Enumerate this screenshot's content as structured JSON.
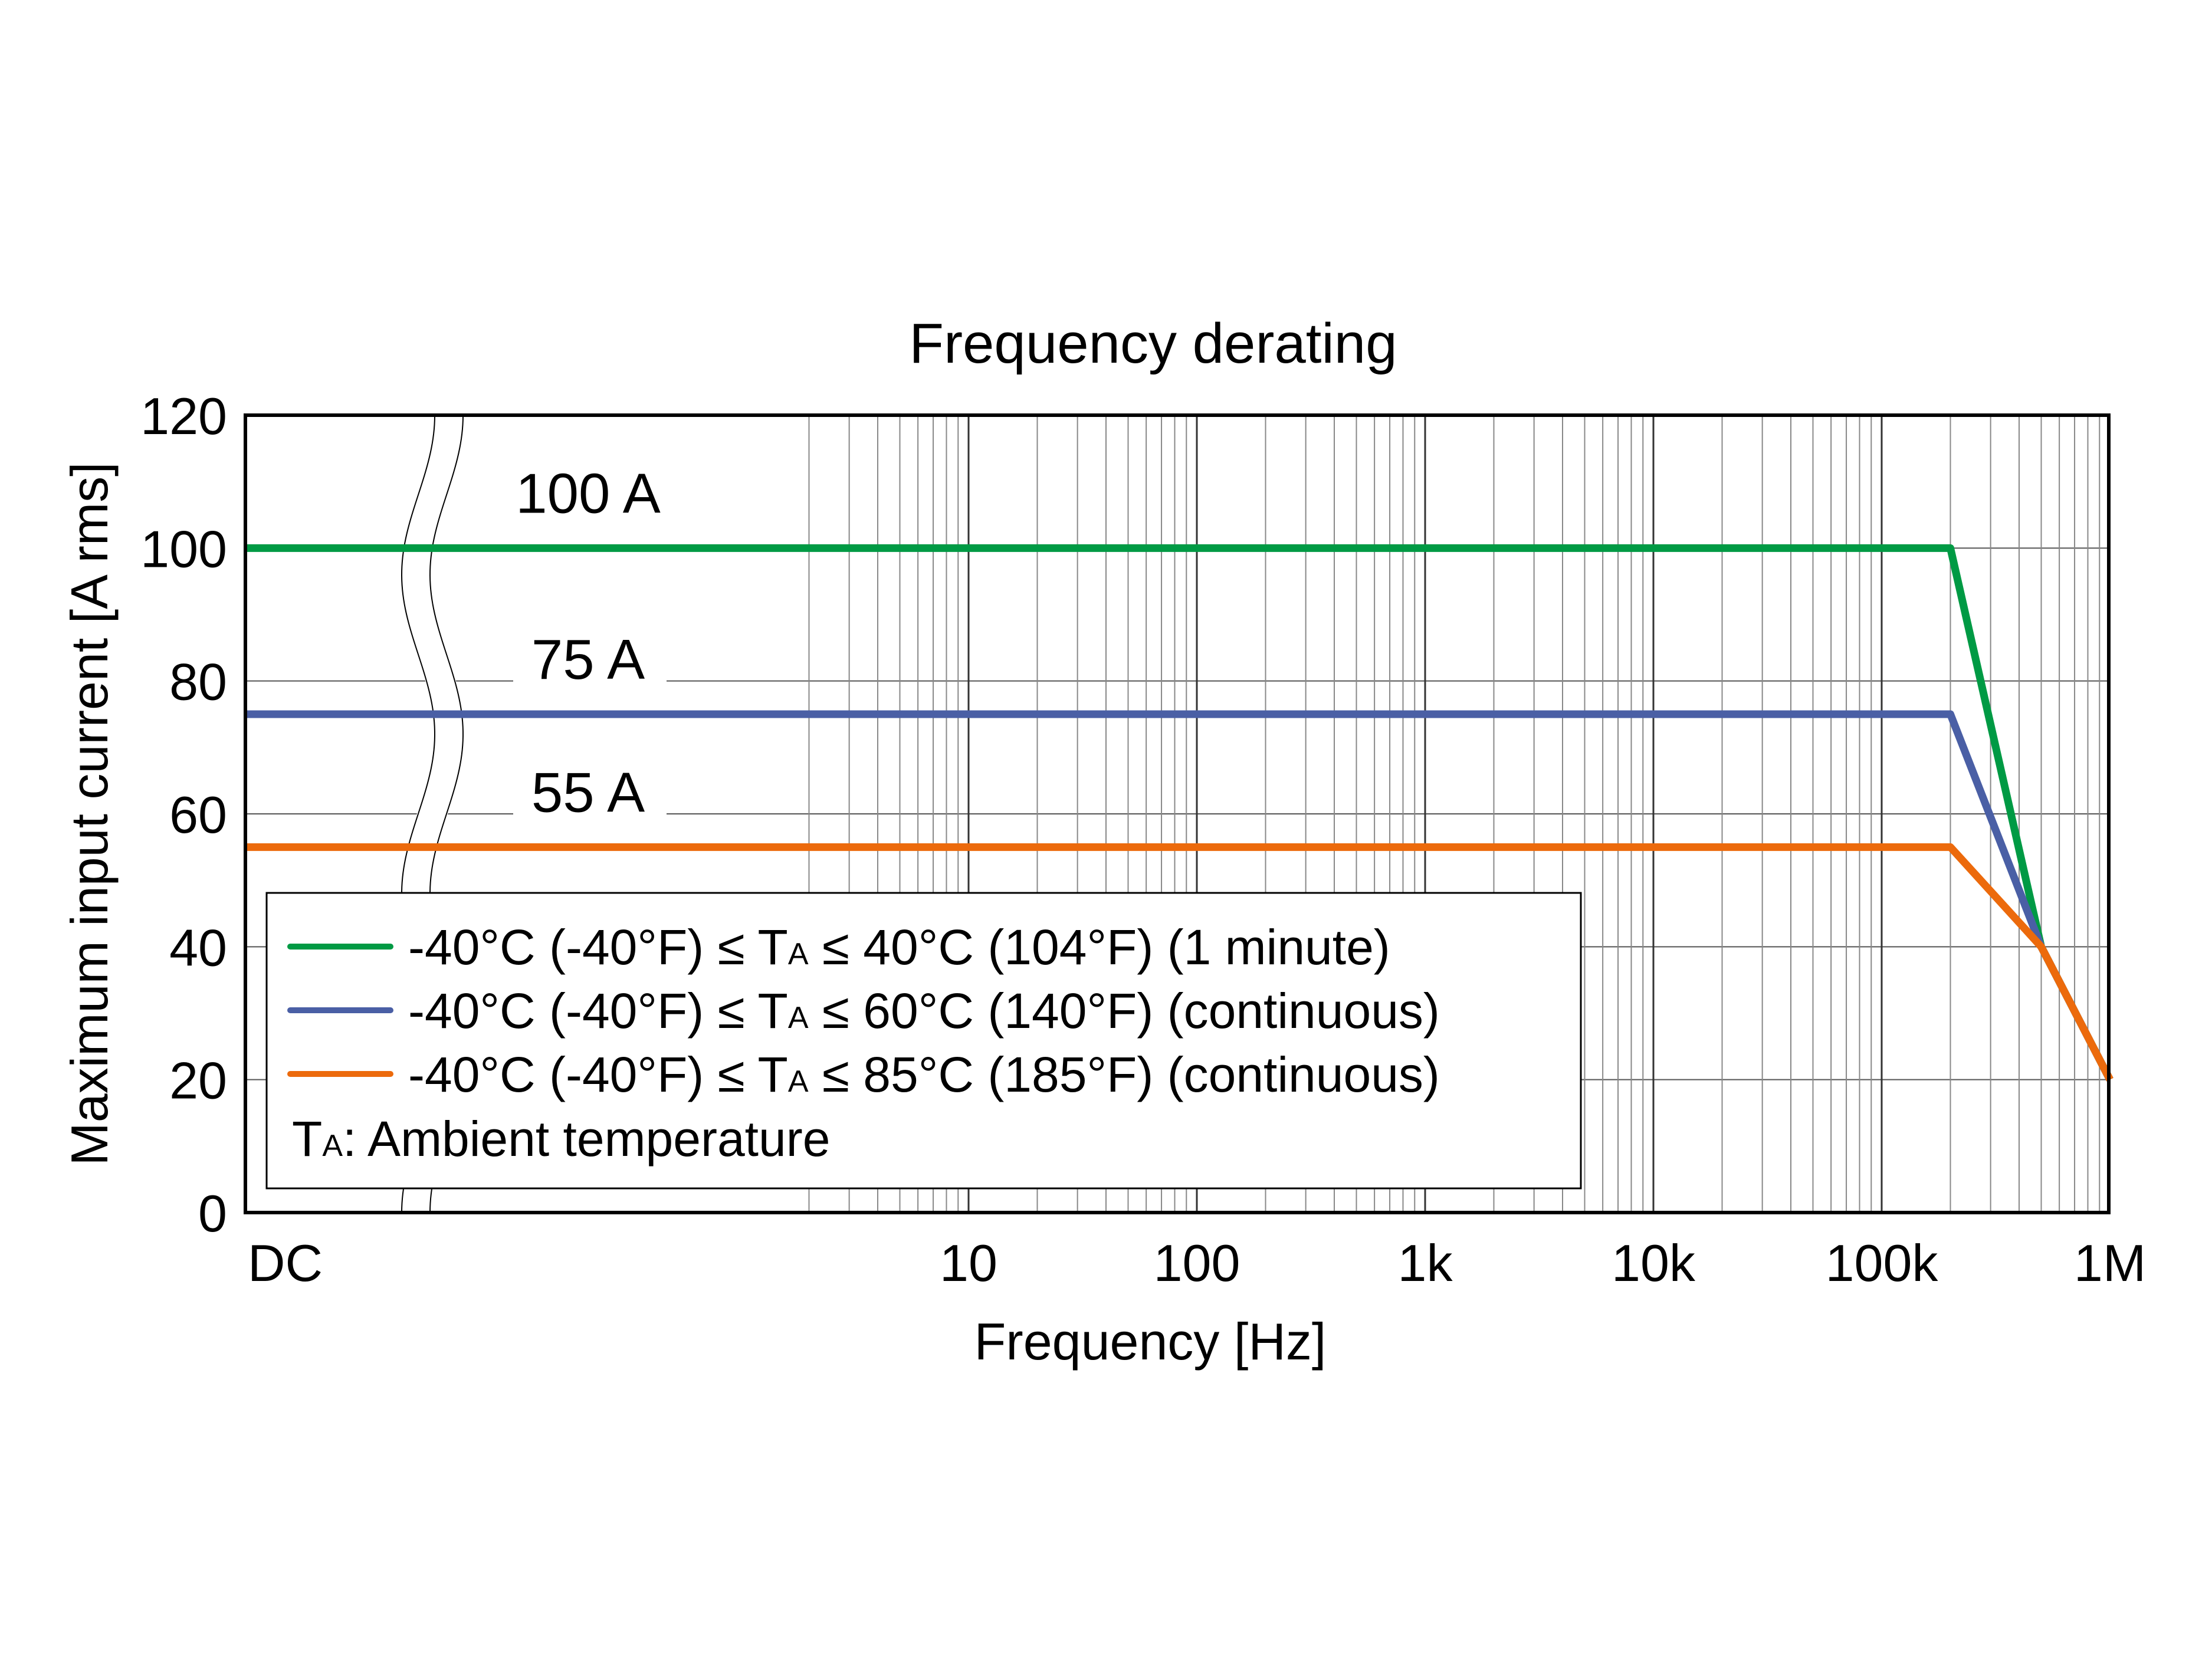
{
  "chart_data": {
    "type": "line",
    "title": "Frequency derating",
    "xlabel": "Frequency [Hz]",
    "ylabel": "Maximum input current [A rms]",
    "x_scale": "log with DC break",
    "xlim": [
      "DC",
      1000000
    ],
    "ylim": [
      0,
      120
    ],
    "grid": true,
    "x_tick_labels": [
      "DC",
      "10",
      "100",
      "1k",
      "10k",
      "100k",
      "1M"
    ],
    "x_tick_values": [
      0,
      10,
      100,
      1000,
      10000,
      100000,
      1000000
    ],
    "y_ticks": [
      0,
      20,
      40,
      60,
      80,
      100,
      120
    ],
    "legend_placement": "bottom-left",
    "legend_note": "TA: Ambient temperature",
    "annotations": [
      "100 A",
      "75 A",
      "55 A"
    ],
    "series": [
      {
        "name": "-40°C (-40°F) ≤ TA ≤ 40°C (104°F) (1 minute)",
        "color": "#009a44",
        "points": [
          [
            "DC",
            100
          ],
          [
            200000,
            100
          ],
          [
            500000,
            40
          ],
          [
            1000000,
            20
          ]
        ]
      },
      {
        "name": "-40°C (-40°F) ≤ TA ≤ 60°C (140°F) (continuous)",
        "color": "#4a5fa5",
        "points": [
          [
            "DC",
            75
          ],
          [
            200000,
            75
          ],
          [
            500000,
            40
          ],
          [
            1000000,
            20
          ]
        ]
      },
      {
        "name": "-40°C (-40°F) ≤ TA ≤ 85°C (185°F) (continuous)",
        "color": "#ec6a0c",
        "points": [
          [
            "DC",
            55
          ],
          [
            200000,
            55
          ],
          [
            500000,
            40
          ],
          [
            1000000,
            20
          ]
        ]
      }
    ]
  }
}
